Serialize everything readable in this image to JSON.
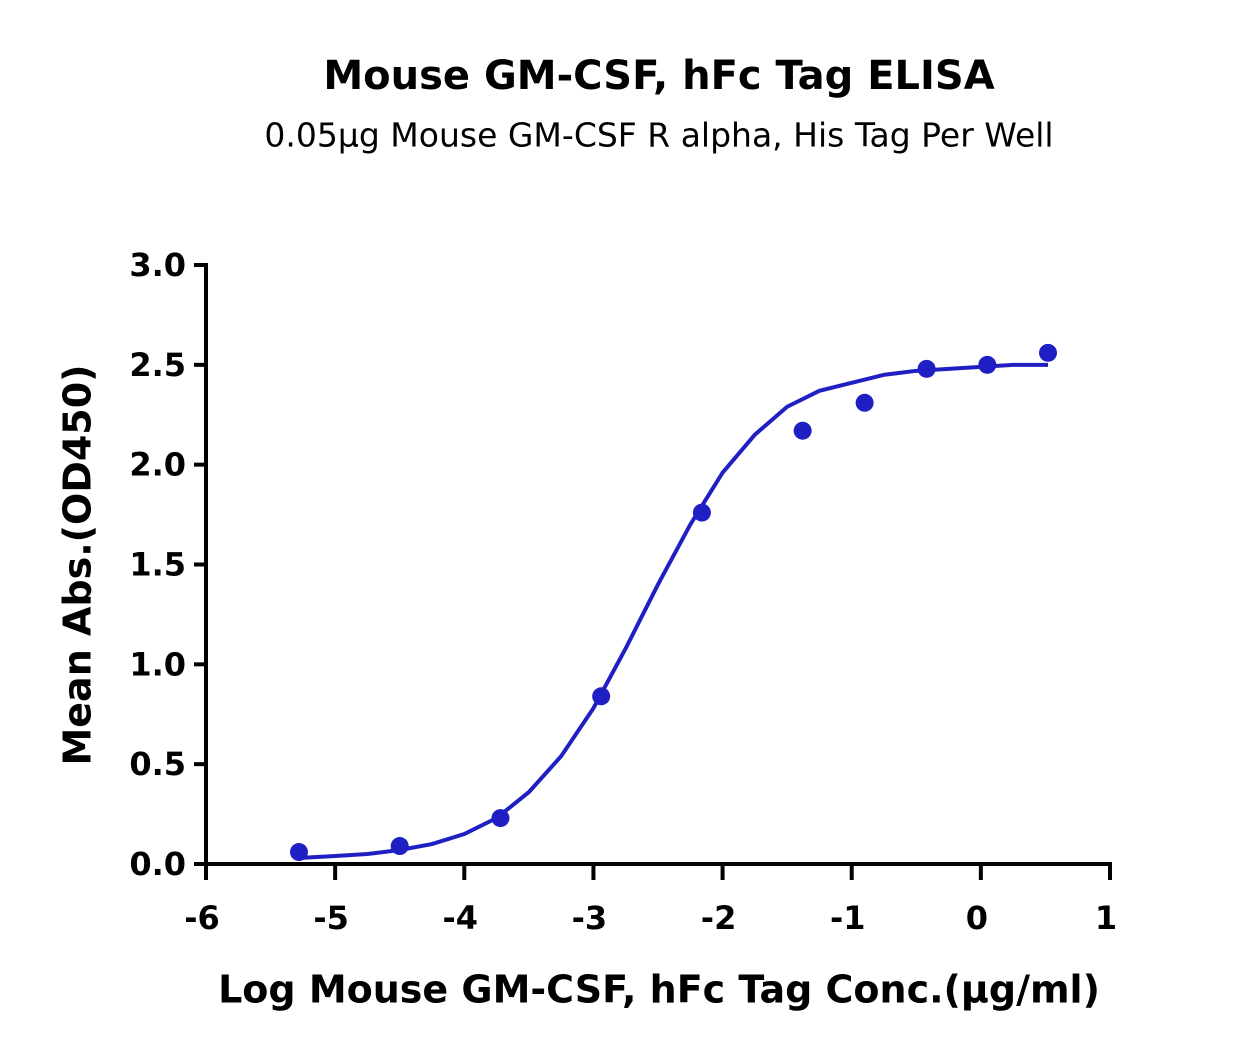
{
  "chart_data": {
    "type": "scatter",
    "title": "Mouse GM-CSF, hFc Tag ELISA",
    "subtitle": "0.05μg Mouse GM-CSF R alpha, His Tag Per Well",
    "x_label": "Log Mouse GM-CSF, hFc Tag Conc.(μg/ml)",
    "y_label": "Mean Abs.(OD450)",
    "xlim": [
      -6,
      1
    ],
    "xticks": [
      -6,
      -5,
      -4,
      -3,
      -2,
      -1,
      0,
      1
    ],
    "ylim": [
      0,
      3
    ],
    "yticks": [
      {
        "value": 0,
        "label": "0.0"
      },
      0.5,
      {
        "value": 1,
        "label": "1.0"
      },
      1.5,
      {
        "value": 2,
        "label": "2.0"
      },
      2.5,
      {
        "value": 3,
        "label": "3.0"
      }
    ],
    "grid": false,
    "series": [
      {
        "type": "scatter",
        "color": "#1f1fc4",
        "x": [
          -5.28,
          -4.5,
          -3.72,
          -2.94,
          -2.16,
          -1.38,
          -0.9,
          -0.42,
          0.05,
          0.52
        ],
        "values": [
          0.06,
          0.09,
          0.23,
          0.84,
          1.76,
          2.17,
          2.31,
          2.48,
          2.5,
          2.56
        ]
      },
      {
        "type": "line",
        "color": "#1f1fc4",
        "x": [
          -5.28,
          -5,
          -4.75,
          -4.5,
          -4.25,
          -4,
          -3.75,
          -3.5,
          -3.25,
          -3,
          -2.75,
          -2.5,
          -2.25,
          -2,
          -1.75,
          -1.5,
          -1.25,
          -1,
          -0.75,
          -0.5,
          -0.25,
          0,
          0.25,
          0.52
        ],
        "values": [
          0.03,
          0.04,
          0.05,
          0.07,
          0.1,
          0.15,
          0.23,
          0.36,
          0.54,
          0.78,
          1.08,
          1.4,
          1.7,
          1.96,
          2.15,
          2.29,
          2.37,
          2.41,
          2.45,
          2.47,
          2.48,
          2.49,
          2.5,
          2.5
        ]
      }
    ]
  }
}
